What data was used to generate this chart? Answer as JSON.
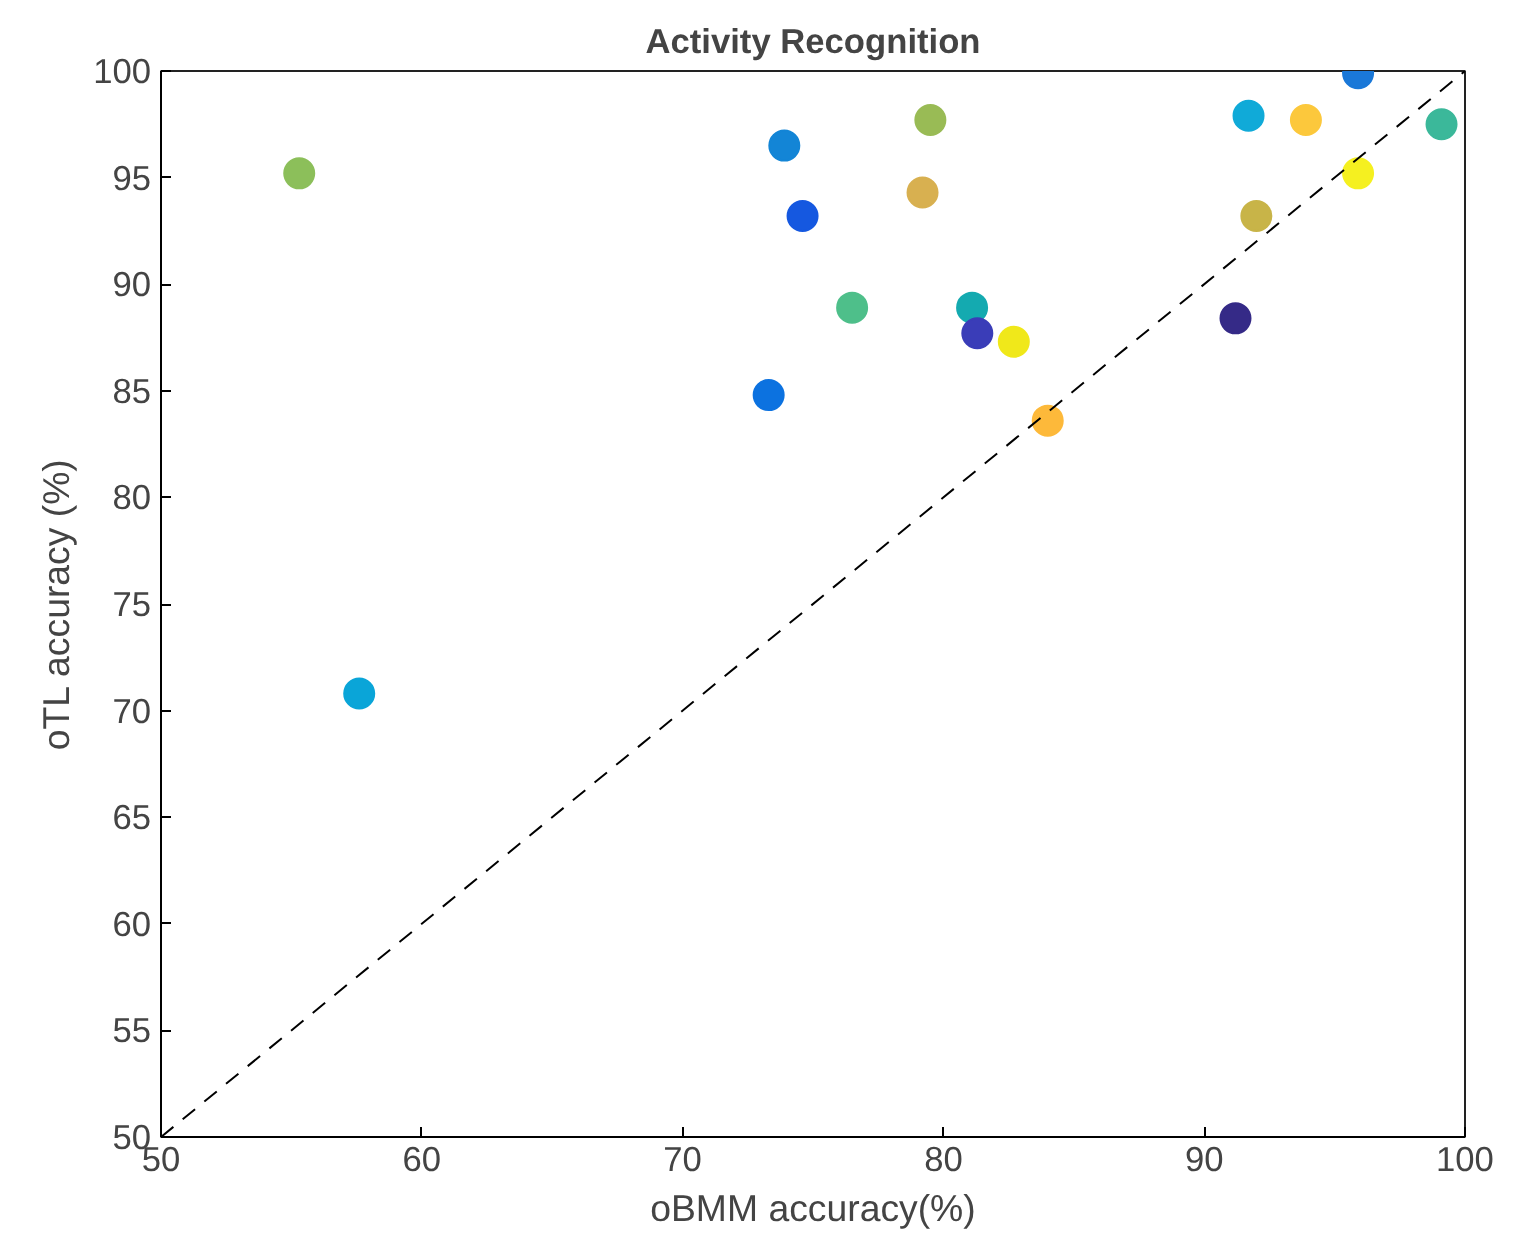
{
  "chart_data": {
    "type": "scatter",
    "title": "Activity Recognition",
    "xlabel": "oBMM accuracy(%)",
    "ylabel": "oTL accuracy (%)",
    "xlim": [
      50,
      100
    ],
    "ylim": [
      50,
      100
    ],
    "xticks": [
      50,
      60,
      70,
      80,
      90,
      100
    ],
    "yticks": [
      50,
      55,
      60,
      65,
      70,
      75,
      80,
      85,
      90,
      95,
      100
    ],
    "grid": false,
    "marker": "circle",
    "series": [
      {
        "type": "scatter",
        "x": [
          55.3,
          57.6,
          73.3,
          73.9,
          74.6,
          76.5,
          79.2,
          79.5,
          81.1,
          81.3,
          82.7,
          84.0,
          91.2,
          91.7,
          92.0,
          93.9,
          95.9,
          95.9,
          99.1
        ],
        "values": [
          95.2,
          70.8,
          84.8,
          96.5,
          93.2,
          88.9,
          94.3,
          97.7,
          88.9,
          87.7,
          87.3,
          83.6,
          88.4,
          97.9,
          93.2,
          97.7,
          99.9,
          95.2,
          97.5
        ],
        "colors": [
          "#8cbf5a",
          "#0aa5d8",
          "#0c72e0",
          "#1385d6",
          "#1558e0",
          "#4ebf8a",
          "#d8b050",
          "#99bb55",
          "#14aab0",
          "#3a3db8",
          "#f0e81a",
          "#fdb93a",
          "#352a87",
          "#10aad8",
          "#c8b448",
          "#fcc83c",
          "#1a78d8",
          "#f5f020",
          "#3bb89a"
        ]
      },
      {
        "type": "line",
        "x": [
          50,
          100
        ],
        "values": [
          50,
          100
        ],
        "color": "#000000",
        "line_style": "dashed",
        "marker": "none"
      }
    ]
  }
}
